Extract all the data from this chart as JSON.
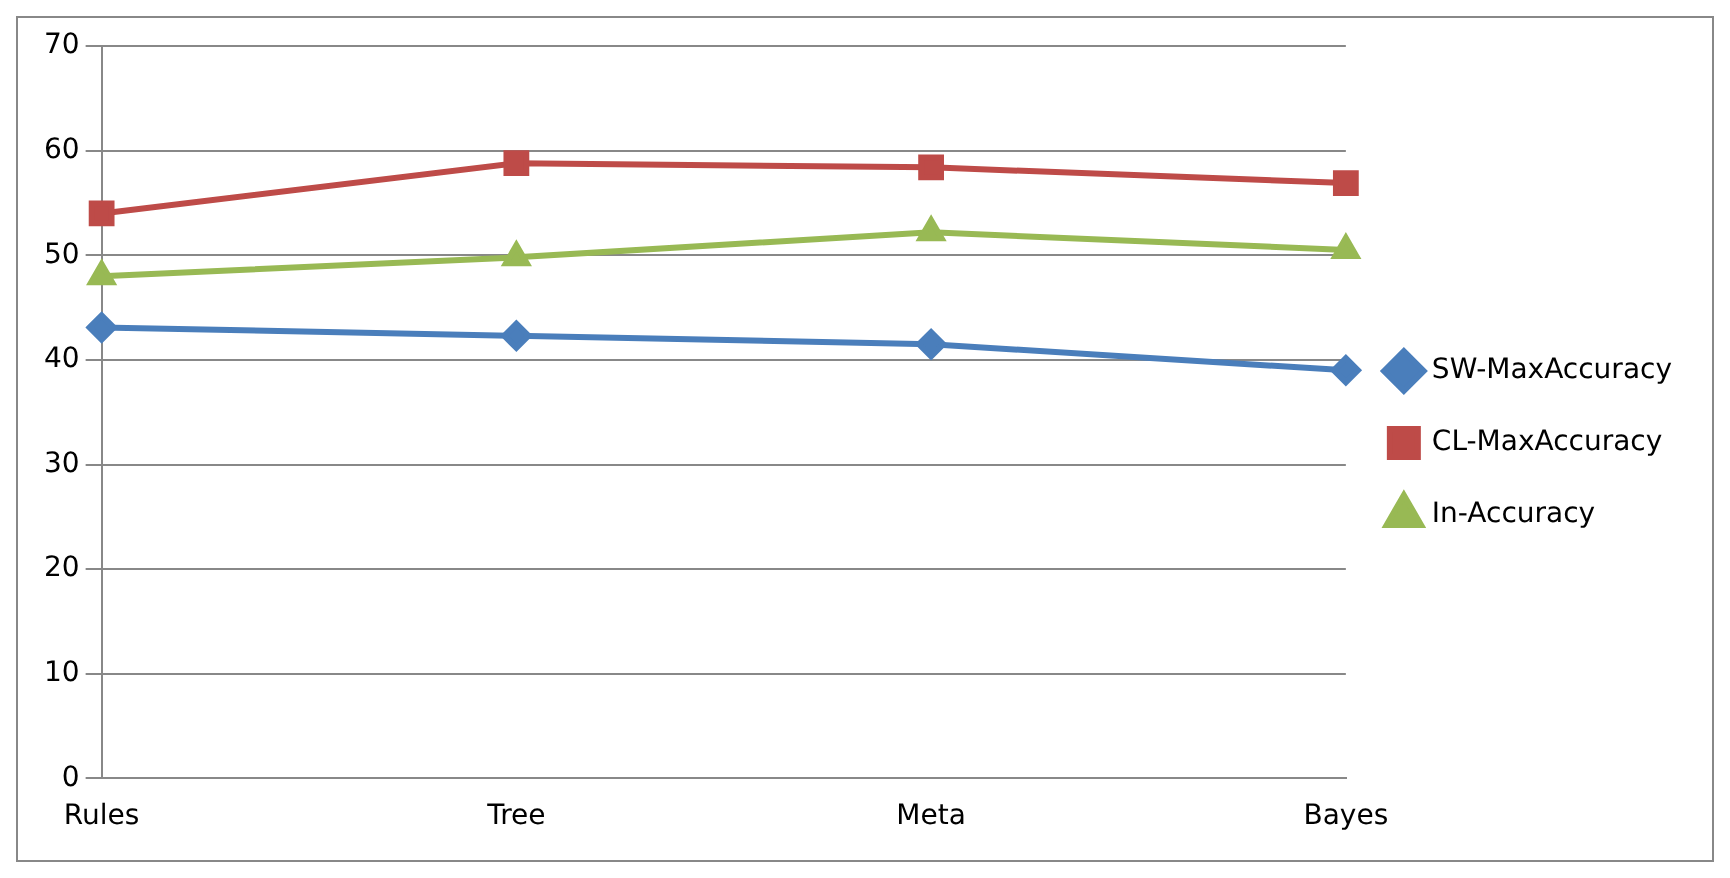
{
  "chart_data": {
    "type": "line",
    "categories": [
      "Rules",
      "Tree",
      "Meta",
      "Bayes"
    ],
    "series": [
      {
        "name": "SW-MaxAccuracy",
        "color": "#4a7ebb",
        "marker": "diamond",
        "values": [
          43.1,
          42.3,
          41.5,
          39
        ]
      },
      {
        "name": "CL-MaxAccuracy",
        "color": "#be4b48",
        "marker": "square",
        "values": [
          54,
          58.8,
          58.4,
          56.9
        ]
      },
      {
        "name": "In-Accuracy",
        "color": "#98b954",
        "marker": "triangle",
        "values": [
          48,
          49.8,
          52.2,
          50.5
        ]
      }
    ],
    "ylim": [
      0,
      70
    ],
    "yticks": [
      0,
      10,
      20,
      30,
      40,
      50,
      60,
      70
    ],
    "grid": "y",
    "legend": "right"
  }
}
